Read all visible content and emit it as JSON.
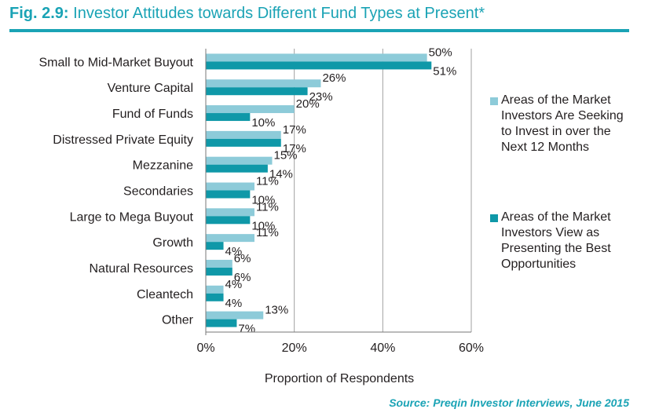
{
  "figure": {
    "number": "Fig. 2.9:",
    "title": "Investor Attitudes towards Different Fund Types at Present*"
  },
  "source": "Source: Preqin Investor Interviews, June 2015",
  "colors": {
    "accent": "#1aa3b5",
    "series_light": "#8dcbd9",
    "series_dark": "#0f98a8",
    "grid": "#a0a0a0"
  },
  "chart_data": {
    "type": "bar",
    "orientation": "horizontal",
    "categories": [
      "Small to Mid-Market Buyout",
      "Venture Capital",
      "Fund of Funds",
      "Distressed Private Equity",
      "Mezzanine",
      "Secondaries",
      "Large to Mega Buyout",
      "Growth",
      "Natural Resources",
      "Cleantech",
      "Other"
    ],
    "series": [
      {
        "name": "Areas of the Market Investors Are Seeking to Invest in over the Next 12 Months",
        "color": "#8dcbd9",
        "values": [
          50,
          26,
          20,
          17,
          15,
          11,
          11,
          11,
          6,
          4,
          13
        ],
        "labels": [
          "50%",
          "26%",
          "20%",
          "17%",
          "15%",
          "11%",
          "11%",
          "11%",
          "6%",
          "4%",
          "13%"
        ]
      },
      {
        "name": "Areas of the Market Investors View as Presenting the Best Opportunities",
        "color": "#0f98a8",
        "values": [
          51,
          23,
          10,
          17,
          14,
          10,
          10,
          4,
          6,
          4,
          7
        ],
        "labels": [
          "51%",
          "23%",
          "10%",
          "17%",
          "14%",
          "10%",
          "10%",
          "4%",
          "6%",
          "4%",
          "7%"
        ]
      }
    ],
    "xlabel": "Proportion of Respondents",
    "xlim": [
      0,
      60
    ],
    "xticks": [
      0,
      20,
      40,
      60
    ],
    "xtick_labels": [
      "0%",
      "20%",
      "40%",
      "60%"
    ],
    "grid": true,
    "legend_position": "right"
  }
}
